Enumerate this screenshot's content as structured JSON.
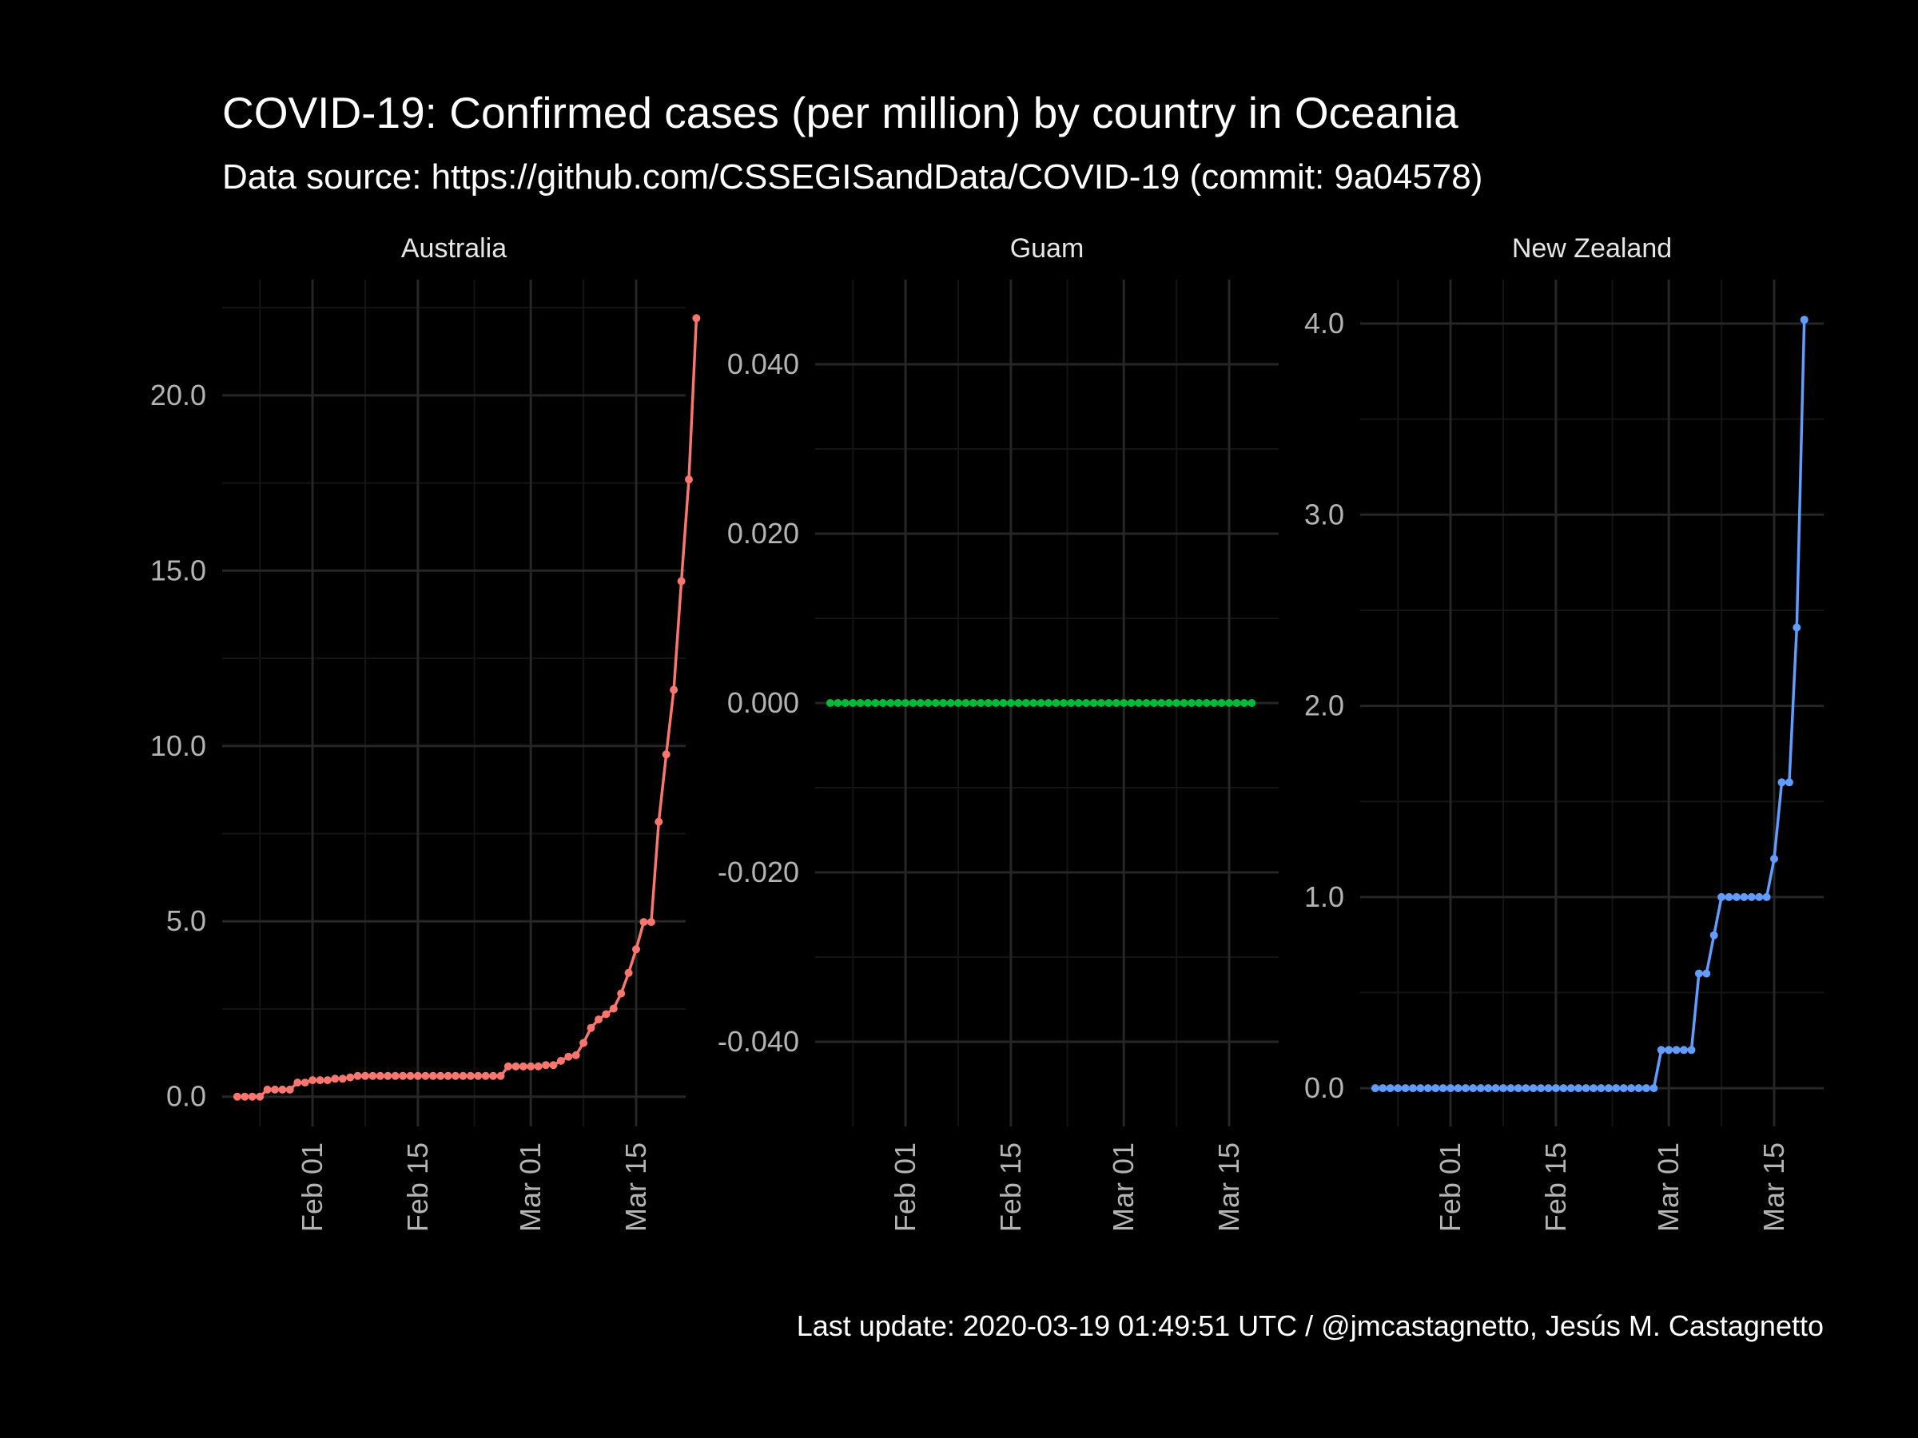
{
  "title": "COVID-19: Confirmed cases (per million)  by country in Oceania",
  "subtitle": "Data source: https://github.com/CSSEGISandData/COVID-19 (commit: 9a04578)",
  "caption": "Last update:  2020-03-19 01:49:51 UTC / @jmcastagnetto, Jesús M. Castagnetto",
  "colors": {
    "background": "#000000",
    "grid_major": "#262626",
    "grid_minor": "#141414",
    "text": "#ffffff",
    "tick_text": "#b3b3b3"
  },
  "chart_data": [
    {
      "type": "line",
      "facet": "Australia",
      "color": "#f8766d",
      "x_start": "2020-01-22",
      "x_end": "2020-03-18",
      "xticks": [
        "Feb 01",
        "Feb 15",
        "Mar 01",
        "Mar 15"
      ],
      "ylim": [
        -0.85,
        23.3
      ],
      "yticks": [
        0,
        5,
        10,
        15,
        20
      ],
      "ytick_labels": [
        "0.0",
        "5.0",
        "10.0",
        "15.0",
        "20.0"
      ],
      "values": [
        0,
        0,
        0,
        0,
        0.2,
        0.2,
        0.2,
        0.2,
        0.4,
        0.4,
        0.47,
        0.47,
        0.47,
        0.51,
        0.51,
        0.55,
        0.59,
        0.59,
        0.59,
        0.59,
        0.59,
        0.59,
        0.59,
        0.59,
        0.59,
        0.59,
        0.59,
        0.59,
        0.59,
        0.59,
        0.59,
        0.59,
        0.59,
        0.59,
        0.59,
        0.59,
        0.86,
        0.86,
        0.86,
        0.86,
        0.86,
        0.9,
        0.9,
        1.02,
        1.14,
        1.18,
        1.53,
        1.96,
        2.2,
        2.35,
        2.51,
        2.94,
        3.53,
        4.2,
        4.98,
        4.98,
        7.84,
        9.76,
        11.6,
        14.7,
        17.6,
        22.2
      ]
    },
    {
      "type": "line",
      "facet": "Guam",
      "color": "#00ba38",
      "x_start": "2020-01-22",
      "x_end": "2020-03-18",
      "xticks": [
        "Feb 01",
        "Feb 15",
        "Mar 01",
        "Mar 15"
      ],
      "ylim": [
        -0.05,
        0.05
      ],
      "yticks": [
        -0.04,
        -0.02,
        0,
        0.02,
        0.04
      ],
      "ytick_labels": [
        "-0.040",
        "-0.020",
        "0.000",
        "0.020",
        "0.040"
      ],
      "values": [
        0,
        0,
        0,
        0,
        0,
        0,
        0,
        0,
        0,
        0,
        0,
        0,
        0,
        0,
        0,
        0,
        0,
        0,
        0,
        0,
        0,
        0,
        0,
        0,
        0,
        0,
        0,
        0,
        0,
        0,
        0,
        0,
        0,
        0,
        0,
        0,
        0,
        0,
        0,
        0,
        0,
        0,
        0,
        0,
        0,
        0,
        0,
        0,
        0,
        0,
        0,
        0,
        0,
        0,
        0,
        0,
        0
      ]
    },
    {
      "type": "line",
      "facet": "New Zealand",
      "color": "#619cff",
      "x_start": "2020-01-22",
      "x_end": "2020-03-18",
      "xticks": [
        "Feb 01",
        "Feb 15",
        "Mar 01",
        "Mar 15"
      ],
      "ylim": [
        -0.2,
        4.23
      ],
      "yticks": [
        0,
        1,
        2,
        3,
        4
      ],
      "ytick_labels": [
        "0.0",
        "1.0",
        "2.0",
        "3.0",
        "4.0"
      ],
      "values": [
        0,
        0,
        0,
        0,
        0,
        0,
        0,
        0,
        0,
        0,
        0,
        0,
        0,
        0,
        0,
        0,
        0,
        0,
        0,
        0,
        0,
        0,
        0,
        0,
        0,
        0,
        0,
        0,
        0,
        0,
        0,
        0,
        0,
        0,
        0,
        0,
        0,
        0,
        0.2,
        0.2,
        0.2,
        0.2,
        0.2,
        0.6,
        0.6,
        0.8,
        1.0,
        1.0,
        1.0,
        1.0,
        1.0,
        1.0,
        1.0,
        1.2,
        1.6,
        1.6,
        2.41,
        4.02
      ]
    }
  ]
}
